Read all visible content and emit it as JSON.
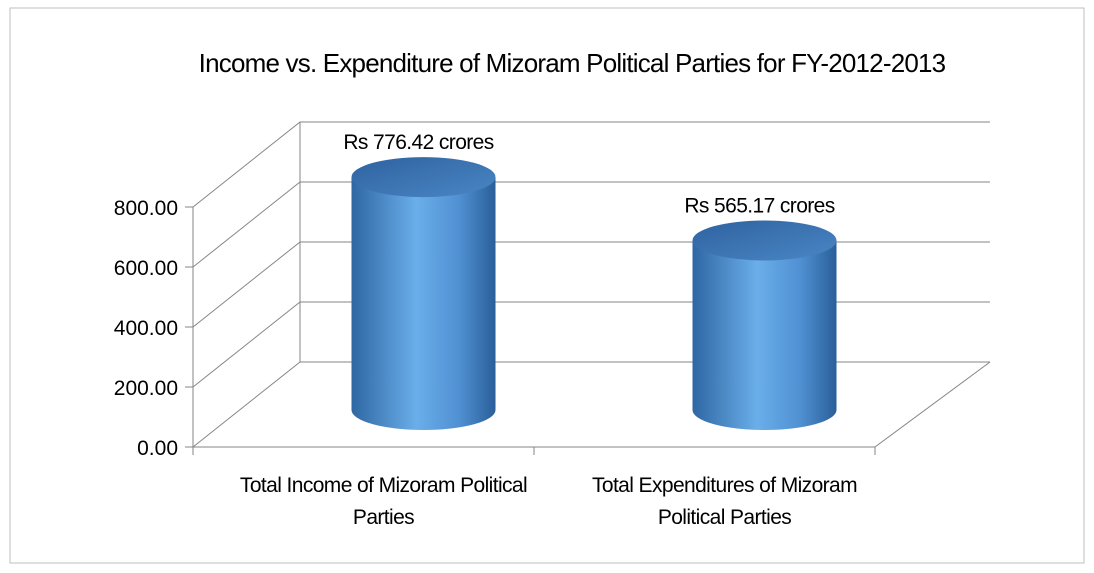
{
  "chart_data": {
    "type": "cylinder",
    "title": "Income vs. Expenditure of Mizoram Political Parties for FY-2012-2013",
    "categories": [
      "Total Income of Mizoram Political Parties",
      "Total Expenditures of Mizoram Political Parties"
    ],
    "values": [
      776.42,
      565.17
    ],
    "value_labels": [
      "Rs 776.42 crores",
      "Rs 565.17 crores"
    ],
    "color": "#4a90d6",
    "ylim": [
      0,
      800
    ],
    "yticks": [
      {
        "value": 0,
        "label": "0.00"
      },
      {
        "value": 200,
        "label": "200.00"
      },
      {
        "value": 400,
        "label": "400.00"
      },
      {
        "value": 600,
        "label": "600.00"
      },
      {
        "value": 800,
        "label": "800.00"
      }
    ],
    "grid": true
  }
}
